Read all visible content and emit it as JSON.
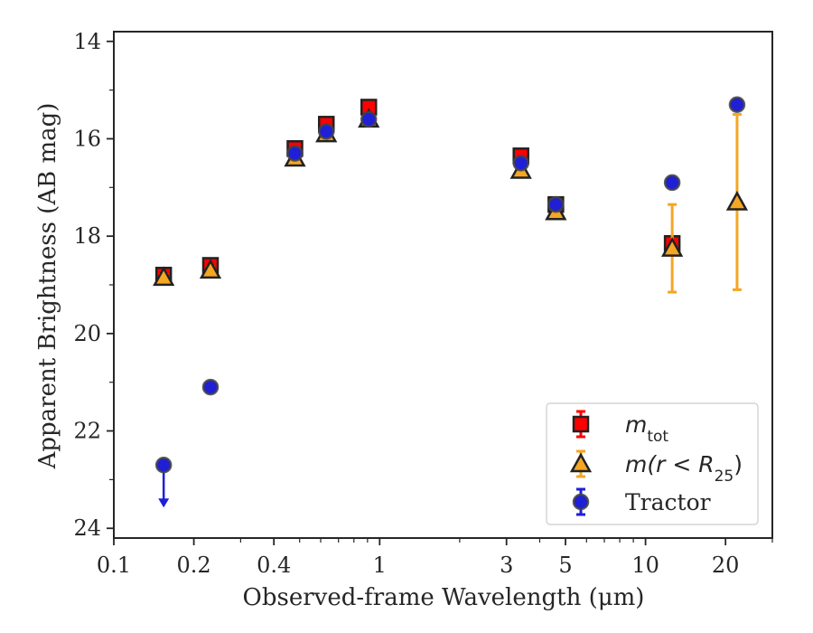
{
  "chart_data": {
    "type": "scatter",
    "title": "",
    "xlabel": "Observed-frame Wavelength (μm)",
    "ylabel": "Apparent Brightness (AB mag)",
    "x_scale": "log",
    "xlim": [
      0.1,
      30
    ],
    "ylim": [
      24.2,
      13.8
    ],
    "y_inverted": true,
    "x_ticks": [
      {
        "value": 0.1,
        "label": "0.1"
      },
      {
        "value": 0.2,
        "label": "0.2"
      },
      {
        "value": 0.4,
        "label": "0.4"
      },
      {
        "value": 1,
        "label": "1"
      },
      {
        "value": 3,
        "label": "3"
      },
      {
        "value": 5,
        "label": "5"
      },
      {
        "value": 10,
        "label": "10"
      },
      {
        "value": 20,
        "label": "20"
      }
    ],
    "x_minor_ticks": [
      0.3,
      0.5,
      0.6,
      0.7,
      0.8,
      0.9,
      2,
      4,
      6,
      7,
      8,
      9,
      30
    ],
    "y_ticks": [
      {
        "value": 14,
        "label": "14"
      },
      {
        "value": 16,
        "label": "16"
      },
      {
        "value": 18,
        "label": "18"
      },
      {
        "value": 20,
        "label": "20"
      },
      {
        "value": 22,
        "label": "22"
      },
      {
        "value": 24,
        "label": "24"
      }
    ],
    "y_minor_ticks": [
      15,
      17,
      19,
      21,
      23
    ],
    "grid": false,
    "legend_position": "bottom-right",
    "series": [
      {
        "name": "m_tot",
        "marker": "square",
        "color": "#ff0000",
        "edge_color": "#222222",
        "points": [
          {
            "x": 0.154,
            "y": 18.8,
            "err": 0.1
          },
          {
            "x": 0.231,
            "y": 18.6,
            "err": 0.1
          },
          {
            "x": 0.48,
            "y": 16.2,
            "err": 0.06
          },
          {
            "x": 0.63,
            "y": 15.7,
            "err": 0.06
          },
          {
            "x": 0.91,
            "y": 15.35,
            "err": 0.06
          },
          {
            "x": 3.4,
            "y": 16.35,
            "err": 0.06
          },
          {
            "x": 4.6,
            "y": 17.35,
            "err": 0.08
          },
          {
            "x": 12.6,
            "y": 18.15,
            "err": 0.1
          }
        ]
      },
      {
        "name": "m(r < R25)",
        "marker": "triangle",
        "color": "#f5a623",
        "edge_color": "#222222",
        "errcolor": "#f5a623",
        "points": [
          {
            "x": 0.154,
            "y": 18.85,
            "err": 0.06
          },
          {
            "x": 0.231,
            "y": 18.7,
            "err": 0.06
          },
          {
            "x": 0.48,
            "y": 16.4,
            "err": 0.05
          },
          {
            "x": 0.63,
            "y": 15.9,
            "err": 0.05
          },
          {
            "x": 0.91,
            "y": 15.6,
            "err": 0.05
          },
          {
            "x": 3.4,
            "y": 16.65,
            "err": 0.05
          },
          {
            "x": 4.6,
            "y": 17.5,
            "err": 0.08
          },
          {
            "x": 12.6,
            "y": 18.25,
            "err": 0.9
          },
          {
            "x": 22.1,
            "y": 17.3,
            "err_low": 1.8,
            "err_high": 1.8
          }
        ]
      },
      {
        "name": "Tractor",
        "marker": "circle",
        "color": "#1f1fd6",
        "edge_color": "#444444",
        "points": [
          {
            "x": 0.154,
            "y": 22.7,
            "upper_limit": true
          },
          {
            "x": 0.231,
            "y": 21.1,
            "err": 0.05
          },
          {
            "x": 0.48,
            "y": 16.3,
            "err": 0.03
          },
          {
            "x": 0.63,
            "y": 15.85,
            "err": 0.03
          },
          {
            "x": 0.91,
            "y": 15.6,
            "err": 0.03
          },
          {
            "x": 3.4,
            "y": 16.5,
            "err": 0.03
          },
          {
            "x": 4.6,
            "y": 17.35,
            "err": 0.03
          },
          {
            "x": 12.6,
            "y": 16.9,
            "err": 0.05
          },
          {
            "x": 22.1,
            "y": 15.3,
            "err": 0.05
          }
        ]
      }
    ],
    "legend": [
      {
        "series": 0,
        "label_main": "m",
        "label_sub": "tot"
      },
      {
        "series": 1,
        "label_main": "m(r < R",
        "label_sub": "25",
        "label_tail": ")"
      },
      {
        "series": 2,
        "label_main": "Tractor"
      }
    ]
  }
}
